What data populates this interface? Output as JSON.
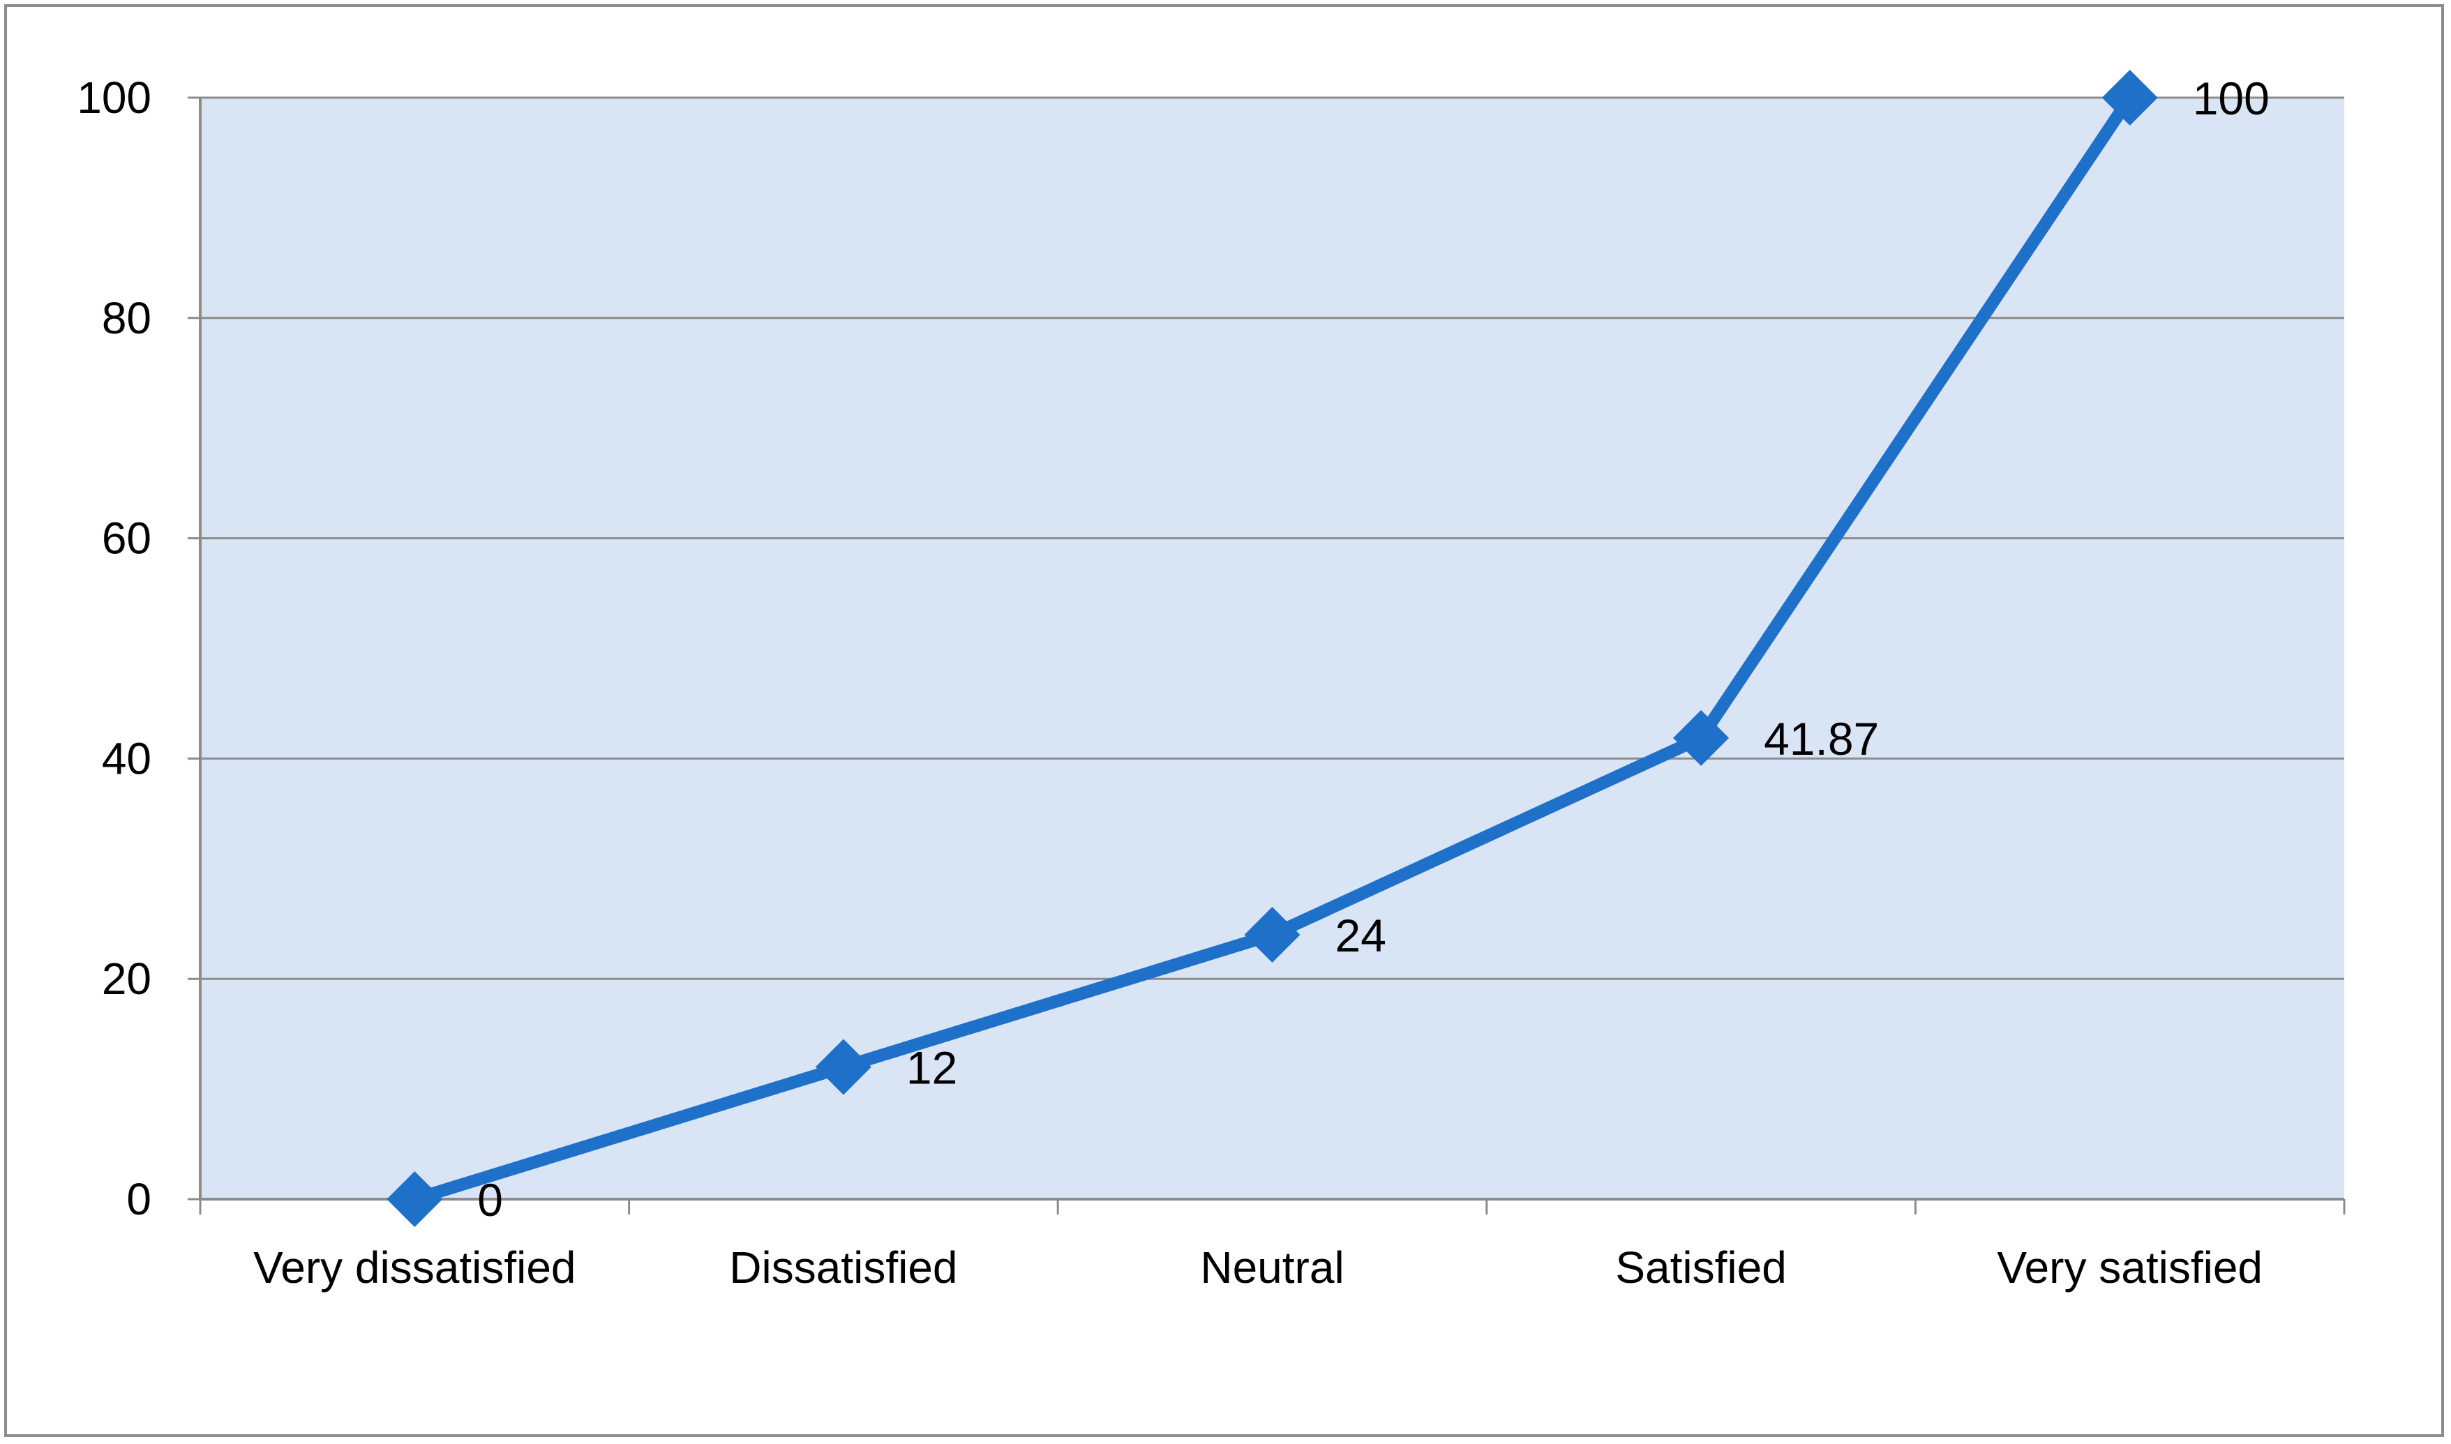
{
  "chart_data": {
    "type": "line",
    "categories": [
      "Very dissatisfied",
      "Dissatisfied",
      "Neutral",
      "Satisfied",
      "Very satisfied"
    ],
    "series": [
      {
        "values": [
          0,
          12,
          24,
          41.87,
          100
        ],
        "labels": [
          "0",
          "12",
          "24",
          "41.87",
          "100"
        ]
      }
    ],
    "title": "",
    "xlabel": "",
    "ylabel": "",
    "ylim": [
      0,
      100
    ],
    "yticks": [
      "0",
      "20",
      "40",
      "60",
      "80",
      "100"
    ],
    "grid": true,
    "legend": "none",
    "colors": {
      "line": "#1f70c8",
      "plot_bg": "#d9e5f4",
      "grid": "#8c8c8c"
    }
  }
}
